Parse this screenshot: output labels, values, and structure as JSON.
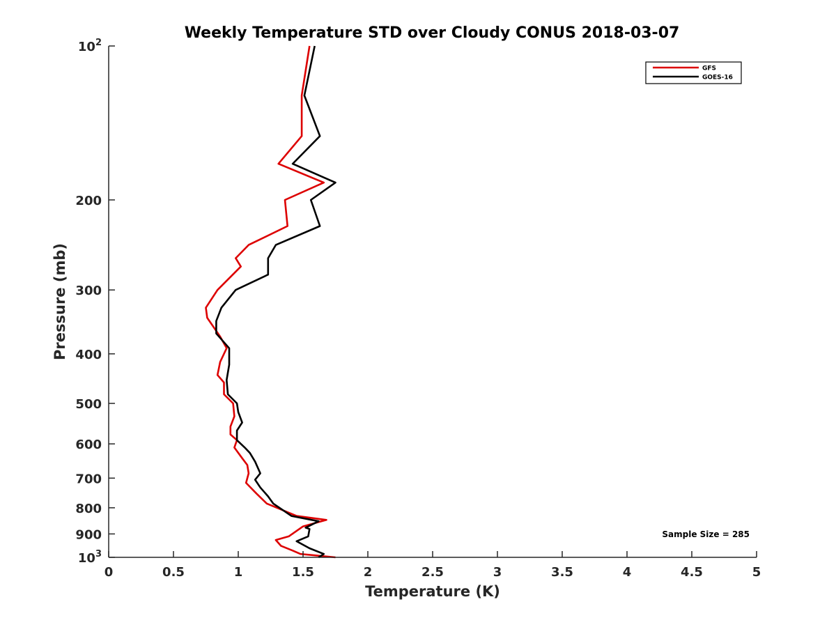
{
  "chart_data": {
    "type": "line",
    "title": "Weekly Temperature STD over Cloudy CONUS 2018-03-07",
    "xlabel": "Temperature (K)",
    "ylabel": "Pressure (mb)",
    "xlim": [
      0,
      5
    ],
    "ylim": [
      100,
      1000
    ],
    "y_scale": "log",
    "y_reversed": true,
    "grid": false,
    "legend_position": "top-right",
    "x_ticks": [
      {
        "value": 0,
        "label": "0"
      },
      {
        "value": 0.5,
        "label": "0.5"
      },
      {
        "value": 1,
        "label": "1"
      },
      {
        "value": 1.5,
        "label": "1.5"
      },
      {
        "value": 2,
        "label": "2"
      },
      {
        "value": 2.5,
        "label": "2.5"
      },
      {
        "value": 3,
        "label": "3"
      },
      {
        "value": 3.5,
        "label": "3.5"
      },
      {
        "value": 4,
        "label": "4"
      },
      {
        "value": 4.5,
        "label": "4.5"
      },
      {
        "value": 5,
        "label": "5"
      }
    ],
    "y_ticks": [
      {
        "value": 100,
        "label": "10",
        "exponent": "2"
      },
      {
        "value": 200,
        "label": "200"
      },
      {
        "value": 300,
        "label": "300"
      },
      {
        "value": 400,
        "label": "400"
      },
      {
        "value": 500,
        "label": "500"
      },
      {
        "value": 600,
        "label": "600"
      },
      {
        "value": 700,
        "label": "700"
      },
      {
        "value": 800,
        "label": "800"
      },
      {
        "value": 900,
        "label": "900"
      },
      {
        "value": 1000,
        "label": "10",
        "exponent": "3"
      }
    ],
    "annotation": "Sample Size = 285",
    "series": [
      {
        "name": "GFS",
        "color": "#dd0000",
        "points": [
          [
            1.55,
            100
          ],
          [
            1.49,
            125
          ],
          [
            1.49,
            150
          ],
          [
            1.31,
            170
          ],
          [
            1.66,
            185
          ],
          [
            1.36,
            200
          ],
          [
            1.38,
            225
          ],
          [
            1.08,
            245
          ],
          [
            0.98,
            260
          ],
          [
            1.02,
            270
          ],
          [
            0.84,
            300
          ],
          [
            0.75,
            325
          ],
          [
            0.76,
            340
          ],
          [
            0.86,
            370
          ],
          [
            0.91,
            390
          ],
          [
            0.86,
            415
          ],
          [
            0.84,
            440
          ],
          [
            0.89,
            455
          ],
          [
            0.89,
            480
          ],
          [
            0.96,
            500
          ],
          [
            0.97,
            530
          ],
          [
            0.94,
            555
          ],
          [
            0.94,
            575
          ],
          [
            0.99,
            590
          ],
          [
            0.97,
            610
          ],
          [
            1.03,
            640
          ],
          [
            1.07,
            660
          ],
          [
            1.08,
            685
          ],
          [
            1.06,
            715
          ],
          [
            1.14,
            750
          ],
          [
            1.22,
            785
          ],
          [
            1.45,
            830
          ],
          [
            1.68,
            845
          ],
          [
            1.5,
            870
          ],
          [
            1.39,
            910
          ],
          [
            1.29,
            925
          ],
          [
            1.33,
            950
          ],
          [
            1.42,
            970
          ],
          [
            1.48,
            985
          ],
          [
            1.75,
            1000
          ]
        ]
      },
      {
        "name": "GOES-16",
        "color": "#000000",
        "points": [
          [
            1.59,
            100
          ],
          [
            1.51,
            125
          ],
          [
            1.63,
            150
          ],
          [
            1.42,
            170
          ],
          [
            1.75,
            185
          ],
          [
            1.56,
            200
          ],
          [
            1.63,
            225
          ],
          [
            1.29,
            245
          ],
          [
            1.23,
            260
          ],
          [
            1.23,
            280
          ],
          [
            0.98,
            300
          ],
          [
            0.87,
            325
          ],
          [
            0.83,
            345
          ],
          [
            0.83,
            365
          ],
          [
            0.93,
            390
          ],
          [
            0.93,
            420
          ],
          [
            0.91,
            450
          ],
          [
            0.92,
            480
          ],
          [
            0.99,
            500
          ],
          [
            1.0,
            520
          ],
          [
            1.03,
            545
          ],
          [
            0.99,
            565
          ],
          [
            0.99,
            590
          ],
          [
            1.05,
            610
          ],
          [
            1.09,
            625
          ],
          [
            1.13,
            650
          ],
          [
            1.17,
            685
          ],
          [
            1.13,
            705
          ],
          [
            1.17,
            730
          ],
          [
            1.23,
            760
          ],
          [
            1.27,
            785
          ],
          [
            1.41,
            830
          ],
          [
            1.62,
            850
          ],
          [
            1.52,
            875
          ],
          [
            1.55,
            880
          ],
          [
            1.54,
            910
          ],
          [
            1.45,
            930
          ],
          [
            1.55,
            960
          ],
          [
            1.66,
            985
          ],
          [
            1.62,
            1000
          ]
        ]
      }
    ]
  }
}
